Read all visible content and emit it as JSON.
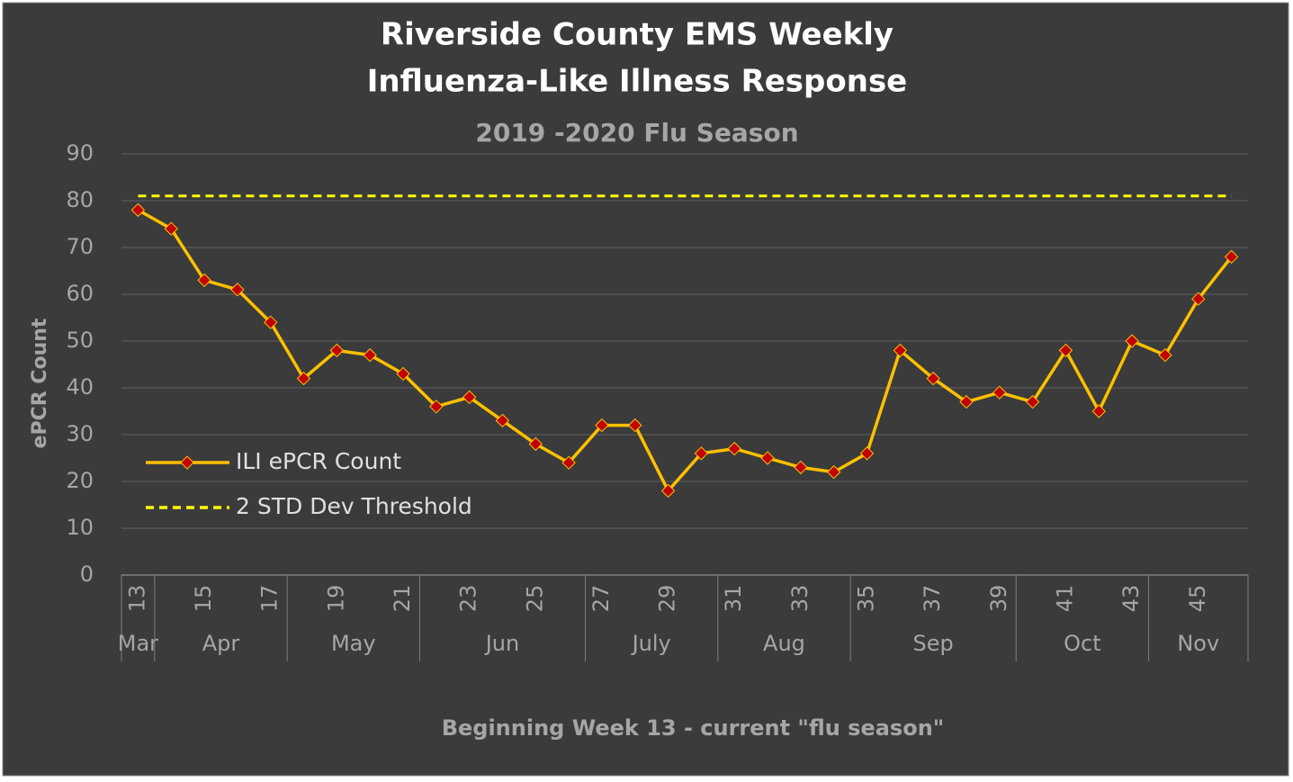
{
  "chart_data": {
    "type": "line",
    "title": "Riverside County EMS Weekly",
    "title_line2": "Influenza-Like Illness Response",
    "subtitle": "2019 -2020 Flu Season",
    "y_label": "ePCR Count",
    "x_label": "Beginning Week 13 - current \"flu season\"",
    "categories": [
      "13",
      null,
      "15",
      null,
      "17",
      null,
      "19",
      null,
      "21",
      null,
      "23",
      null,
      "25",
      null,
      "27",
      null,
      "29",
      null,
      "31",
      null,
      "33",
      null,
      "35",
      null,
      "37",
      null,
      "39",
      null,
      "41",
      null,
      "43",
      null,
      "45",
      null
    ],
    "groups": [
      {
        "label": "Mar",
        "weeks": 1
      },
      {
        "label": "Apr",
        "weeks": 4
      },
      {
        "label": "May",
        "weeks": 4
      },
      {
        "label": "Jun",
        "weeks": 5
      },
      {
        "label": "July",
        "weeks": 4
      },
      {
        "label": "Aug",
        "weeks": 4
      },
      {
        "label": "Sep",
        "weeks": 5
      },
      {
        "label": "Oct",
        "weeks": 4
      },
      {
        "label": "Nov",
        "weeks": 3
      }
    ],
    "series": [
      {
        "name": "ILI ePCR Count",
        "color": "#ffc000",
        "marker_color": "#c00000",
        "dash": false,
        "values": [
          78,
          74,
          63,
          61,
          54,
          42,
          48,
          47,
          43,
          36,
          38,
          33,
          28,
          24,
          32,
          32,
          18,
          26,
          27,
          25,
          23,
          22,
          26,
          48,
          42,
          37,
          39,
          37,
          48,
          35,
          50,
          47,
          59,
          68
        ]
      },
      {
        "name": "2 STD Dev Threshold",
        "color": "#ffff00",
        "dash": true,
        "values": [
          81,
          81,
          81,
          81,
          81,
          81,
          81,
          81,
          81,
          81,
          81,
          81,
          81,
          81,
          81,
          81,
          81,
          81,
          81,
          81,
          81,
          81,
          81,
          81,
          81,
          81,
          81,
          81,
          81,
          81,
          81,
          81,
          81,
          81
        ]
      }
    ],
    "ylim": [
      0,
      90
    ],
    "yticks": [
      0,
      10,
      20,
      30,
      40,
      50,
      60,
      70,
      80,
      90
    ],
    "grid": true,
    "legend": "lower-left"
  }
}
